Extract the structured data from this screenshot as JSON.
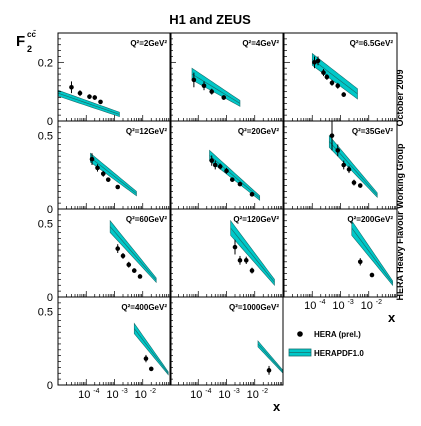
{
  "title": "H1 and ZEUS",
  "ylabel_main": "F",
  "ylabel_sup": "cc̄",
  "ylabel_sub": "2",
  "xlabel": "x",
  "side_text_top": "October 2009",
  "side_text_bottom": "HERA Heavy Flavour Working Group",
  "legend": [
    {
      "kind": "points",
      "label": "HERA (prel.)"
    },
    {
      "kind": "band",
      "label": "HERAPDF1.0"
    }
  ],
  "colors": {
    "band": "#00c8c8",
    "band_edge": "#1a6f6f",
    "points": "#000000"
  },
  "x_tick_labels": [
    "10",
    "10",
    "10"
  ],
  "x_tick_exps": [
    "-4",
    "-3",
    "-2"
  ],
  "chart_data": [
    {
      "type": "scatter",
      "q2_label": "Q²=2GeV²",
      "row": 0,
      "col": 0,
      "ylim": [
        0,
        0.3
      ],
      "xlim": [
        1e-05,
        0.1
      ],
      "y_ticks": [
        0,
        0.2
      ],
      "y_tick_labels": [
        "0",
        "0.2"
      ],
      "points": [
        {
          "x": 3e-05,
          "y": 0.115,
          "err": 0.02
        },
        {
          "x": 6e-05,
          "y": 0.095,
          "err": 0.01
        },
        {
          "x": 0.00013,
          "y": 0.083,
          "err": 0.008
        },
        {
          "x": 0.0002,
          "y": 0.08,
          "err": 0.008
        },
        {
          "x": 0.00032,
          "y": 0.065,
          "err": 0.006
        }
      ],
      "band": {
        "x": [
          1e-05,
          0.0015
        ],
        "lo": [
          0.085,
          0.015
        ],
        "hi": [
          0.105,
          0.03
        ]
      }
    },
    {
      "type": "scatter",
      "q2_label": "Q²=4GeV²",
      "row": 0,
      "col": 1,
      "ylim": [
        0,
        0.3
      ],
      "xlim": [
        1e-05,
        0.1
      ],
      "points": [
        {
          "x": 7e-05,
          "y": 0.14,
          "err": 0.025
        },
        {
          "x": 0.00016,
          "y": 0.12,
          "err": 0.015
        },
        {
          "x": 0.0003,
          "y": 0.1,
          "err": 0.01
        },
        {
          "x": 0.0008,
          "y": 0.08,
          "err": 0.008
        }
      ],
      "band": {
        "x": [
          6e-05,
          0.003
        ],
        "lo": [
          0.14,
          0.05
        ],
        "hi": [
          0.18,
          0.07
        ]
      }
    },
    {
      "type": "scatter",
      "q2_label": "Q²=6.5GeV²",
      "row": 0,
      "col": 2,
      "ylim": [
        0,
        0.3
      ],
      "xlim": [
        1e-05,
        0.1
      ],
      "points": [
        {
          "x": 0.00012,
          "y": 0.2,
          "err": 0.02
        },
        {
          "x": 0.00016,
          "y": 0.205,
          "err": 0.015
        },
        {
          "x": 0.00025,
          "y": 0.165,
          "err": 0.012
        },
        {
          "x": 0.00033,
          "y": 0.15,
          "err": 0.01
        },
        {
          "x": 0.0005,
          "y": 0.13,
          "err": 0.01
        },
        {
          "x": 0.0008,
          "y": 0.12,
          "err": 0.01
        },
        {
          "x": 0.0013,
          "y": 0.09,
          "err": 0.008
        }
      ],
      "band": {
        "x": [
          0.0001,
          0.004
        ],
        "lo": [
          0.19,
          0.075
        ],
        "hi": [
          0.23,
          0.11
        ]
      }
    },
    {
      "type": "scatter",
      "q2_label": "Q²=12GeV²",
      "row": 1,
      "col": 0,
      "ylim": [
        0,
        0.6
      ],
      "xlim": [
        1e-05,
        0.1
      ],
      "y_ticks": [
        0,
        0.5
      ],
      "y_tick_labels": [
        "0",
        "0.5"
      ],
      "points": [
        {
          "x": 0.00016,
          "y": 0.34,
          "err": 0.04
        },
        {
          "x": 0.00025,
          "y": 0.28,
          "err": 0.025
        },
        {
          "x": 0.0004,
          "y": 0.24,
          "err": 0.02
        },
        {
          "x": 0.0006,
          "y": 0.2,
          "err": 0.015
        },
        {
          "x": 0.0013,
          "y": 0.15,
          "err": 0.01
        }
      ],
      "band": {
        "x": [
          0.00014,
          0.006
        ],
        "lo": [
          0.32,
          0.09
        ],
        "hi": [
          0.38,
          0.12
        ]
      }
    },
    {
      "type": "scatter",
      "q2_label": "Q²=20GeV²",
      "row": 1,
      "col": 1,
      "ylim": [
        0,
        0.6
      ],
      "xlim": [
        1e-05,
        0.1
      ],
      "points": [
        {
          "x": 0.0003,
          "y": 0.33,
          "err": 0.035
        },
        {
          "x": 0.0004,
          "y": 0.3,
          "err": 0.03
        },
        {
          "x": 0.0006,
          "y": 0.29,
          "err": 0.02
        },
        {
          "x": 0.001,
          "y": 0.26,
          "err": 0.02
        },
        {
          "x": 0.0016,
          "y": 0.2,
          "err": 0.015
        },
        {
          "x": 0.003,
          "y": 0.17,
          "err": 0.01
        },
        {
          "x": 0.008,
          "y": 0.1,
          "err": 0.008
        }
      ],
      "band": {
        "x": [
          0.00025,
          0.015
        ],
        "lo": [
          0.33,
          0.06
        ],
        "hi": [
          0.4,
          0.09
        ]
      }
    },
    {
      "type": "scatter",
      "q2_label": "Q²=35GeV²",
      "row": 1,
      "col": 2,
      "ylim": [
        0,
        0.6
      ],
      "xlim": [
        1e-05,
        0.1
      ],
      "points": [
        {
          "x": 0.0005,
          "y": 0.5,
          "err": 0.1
        },
        {
          "x": 0.0008,
          "y": 0.4,
          "err": 0.04
        },
        {
          "x": 0.0013,
          "y": 0.3,
          "err": 0.03
        },
        {
          "x": 0.002,
          "y": 0.27,
          "err": 0.025
        },
        {
          "x": 0.003,
          "y": 0.18,
          "err": 0.02
        },
        {
          "x": 0.005,
          "y": 0.16,
          "err": 0.015
        }
      ],
      "band": {
        "x": [
          0.0004,
          0.02
        ],
        "lo": [
          0.42,
          0.08
        ],
        "hi": [
          0.5,
          0.11
        ]
      }
    },
    {
      "type": "scatter",
      "q2_label": "Q²=60GeV²",
      "row": 2,
      "col": 0,
      "ylim": [
        0,
        0.6
      ],
      "xlim": [
        1e-05,
        0.1
      ],
      "y_ticks": [
        0,
        0.5
      ],
      "y_tick_labels": [
        "0",
        "0.5"
      ],
      "points": [
        {
          "x": 0.0013,
          "y": 0.33,
          "err": 0.03
        },
        {
          "x": 0.002,
          "y": 0.28,
          "err": 0.02
        },
        {
          "x": 0.0032,
          "y": 0.22,
          "err": 0.02
        },
        {
          "x": 0.005,
          "y": 0.18,
          "err": 0.015
        },
        {
          "x": 0.008,
          "y": 0.14,
          "err": 0.01
        }
      ],
      "band": {
        "x": [
          0.0007,
          0.03
        ],
        "lo": [
          0.44,
          0.1
        ],
        "hi": [
          0.52,
          0.13
        ]
      }
    },
    {
      "type": "scatter",
      "q2_label": "Q²=120GeV²",
      "row": 2,
      "col": 1,
      "ylim": [
        0,
        0.6
      ],
      "xlim": [
        1e-05,
        0.1
      ],
      "points": [
        {
          "x": 0.002,
          "y": 0.34,
          "err": 0.05
        },
        {
          "x": 0.003,
          "y": 0.25,
          "err": 0.03
        },
        {
          "x": 0.005,
          "y": 0.25,
          "err": 0.025
        },
        {
          "x": 0.008,
          "y": 0.18,
          "err": 0.02
        }
      ],
      "band": {
        "x": [
          0.0014,
          0.05
        ],
        "lo": [
          0.42,
          0.08
        ],
        "hi": [
          0.52,
          0.12
        ]
      }
    },
    {
      "type": "scatter",
      "q2_label": "Q²=200GeV²",
      "row": 2,
      "col": 2,
      "ylim": [
        0,
        0.6
      ],
      "xlim": [
        1e-05,
        0.1
      ],
      "points": [
        {
          "x": 0.005,
          "y": 0.24,
          "err": 0.025
        },
        {
          "x": 0.013,
          "y": 0.15,
          "err": 0.015
        }
      ],
      "band": {
        "x": [
          0.0025,
          0.07
        ],
        "lo": [
          0.42,
          0.08
        ],
        "hi": [
          0.52,
          0.11
        ]
      }
    },
    {
      "type": "scatter",
      "q2_label": "Q²=400GeV²",
      "row": 3,
      "col": 0,
      "ylim": [
        0,
        0.6
      ],
      "xlim": [
        1e-05,
        0.1
      ],
      "y_ticks": [
        0,
        0.5
      ],
      "y_tick_labels": [
        "0",
        "0.5"
      ],
      "points": [
        {
          "x": 0.013,
          "y": 0.18,
          "err": 0.025
        },
        {
          "x": 0.02,
          "y": 0.11,
          "err": 0.015
        }
      ],
      "band": {
        "x": [
          0.005,
          0.08
        ],
        "lo": [
          0.35,
          0.07
        ],
        "hi": [
          0.42,
          0.09
        ]
      }
    },
    {
      "type": "scatter",
      "q2_label": "Q²=1000GeV²",
      "row": 3,
      "col": 1,
      "ylim": [
        0,
        0.6
      ],
      "xlim": [
        1e-05,
        0.1
      ],
      "points": [
        {
          "x": 0.032,
          "y": 0.1,
          "err": 0.03
        }
      ],
      "band": {
        "x": [
          0.013,
          0.1
        ],
        "lo": [
          0.26,
          0.08
        ],
        "hi": [
          0.3,
          0.1
        ]
      }
    }
  ]
}
